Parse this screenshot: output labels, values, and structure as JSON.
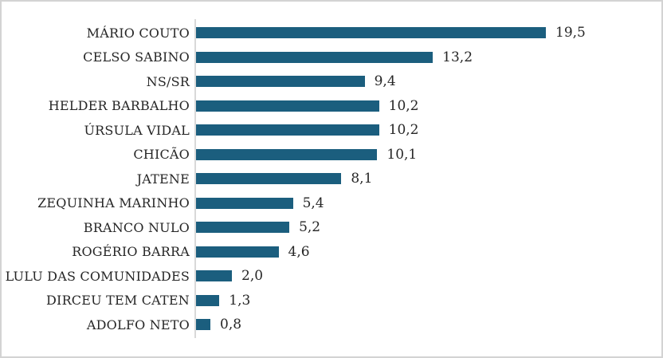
{
  "chart_data": {
    "type": "bar",
    "orientation": "horizontal",
    "title": "",
    "xlabel": "",
    "ylabel": "",
    "xlim": [
      0,
      20
    ],
    "grid": false,
    "legend": false,
    "categories": [
      "MÁRIO COUTO",
      "CELSO SABINO",
      "NS/SR",
      "HELDER BARBALHO",
      "ÚRSULA VIDAL",
      "CHICÃO",
      "JATENE",
      "ZEQUINHA MARINHO",
      "BRANCO NULO",
      "ROGÉRIO BARRA",
      "LULU DAS COMUNIDADES",
      "DIRCEU TEM CATEN",
      "ADOLFO NETO"
    ],
    "values": [
      19.5,
      13.2,
      9.4,
      10.2,
      10.2,
      10.1,
      8.1,
      5.4,
      5.2,
      4.6,
      2.0,
      1.3,
      0.8
    ],
    "value_labels": [
      "19,5",
      "13,2",
      "9,4",
      "10,2",
      "10,2",
      "10,1",
      "8,1",
      "5,4",
      "5,2",
      "4,6",
      "2,0",
      "1,3",
      "0,8"
    ],
    "colors": {
      "bar": "#1B5E7E",
      "axis_line": "#D9D9D9",
      "text": "#262626",
      "frame_border": "#D3D3D3",
      "background": "#FFFFFF"
    }
  }
}
